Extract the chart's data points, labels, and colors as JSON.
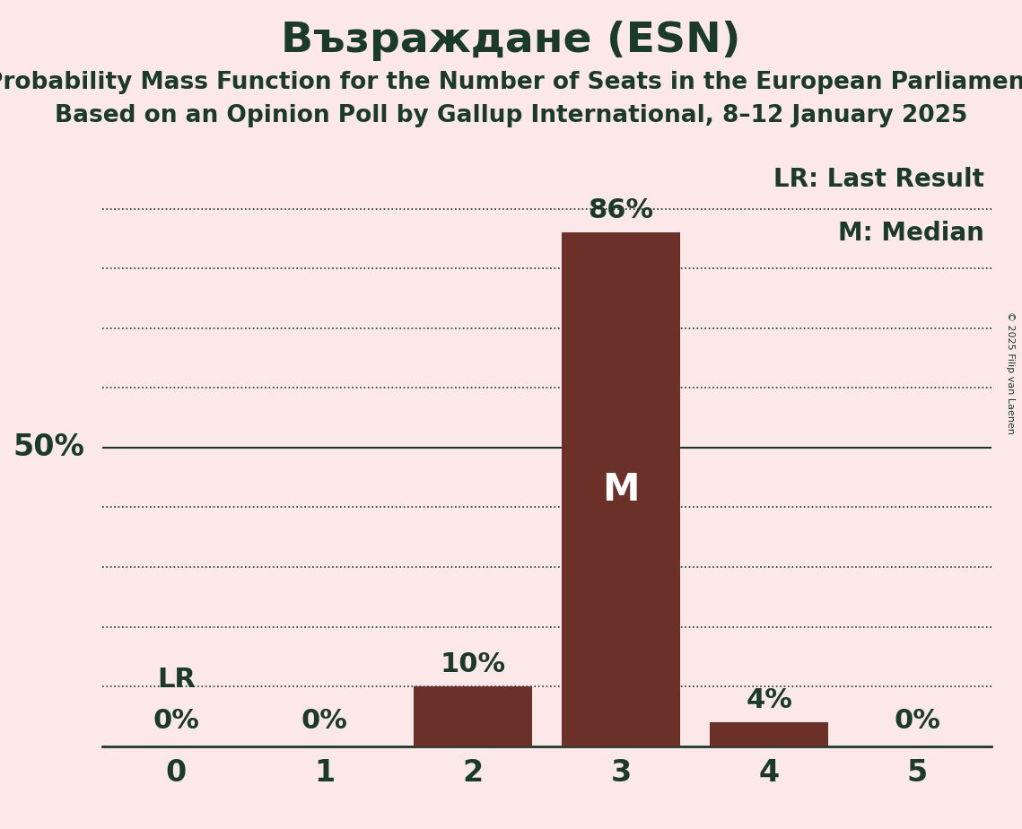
{
  "title": "Възраждане (ESN)",
  "subtitle1": "Probability Mass Function for the Number of Seats in the European Parliament",
  "subtitle2": "Based on an Opinion Poll by Gallup International, 8–12 January 2025",
  "copyright": "© 2025 Filip van Laenen",
  "categories": [
    0,
    1,
    2,
    3,
    4,
    5
  ],
  "values": [
    0,
    0,
    10,
    86,
    4,
    0
  ],
  "bar_color": "#6b3028",
  "background_color": "#fce8e8",
  "text_color": "#1a3a2a",
  "median_seat": 3,
  "last_result_seat": 0,
  "ylabel_50": "50%",
  "legend_lr": "LR: Last Result",
  "legend_m": "M: Median",
  "ylim": [
    0,
    100
  ],
  "yticks": [
    10,
    20,
    30,
    40,
    50,
    60,
    70,
    80,
    90
  ]
}
